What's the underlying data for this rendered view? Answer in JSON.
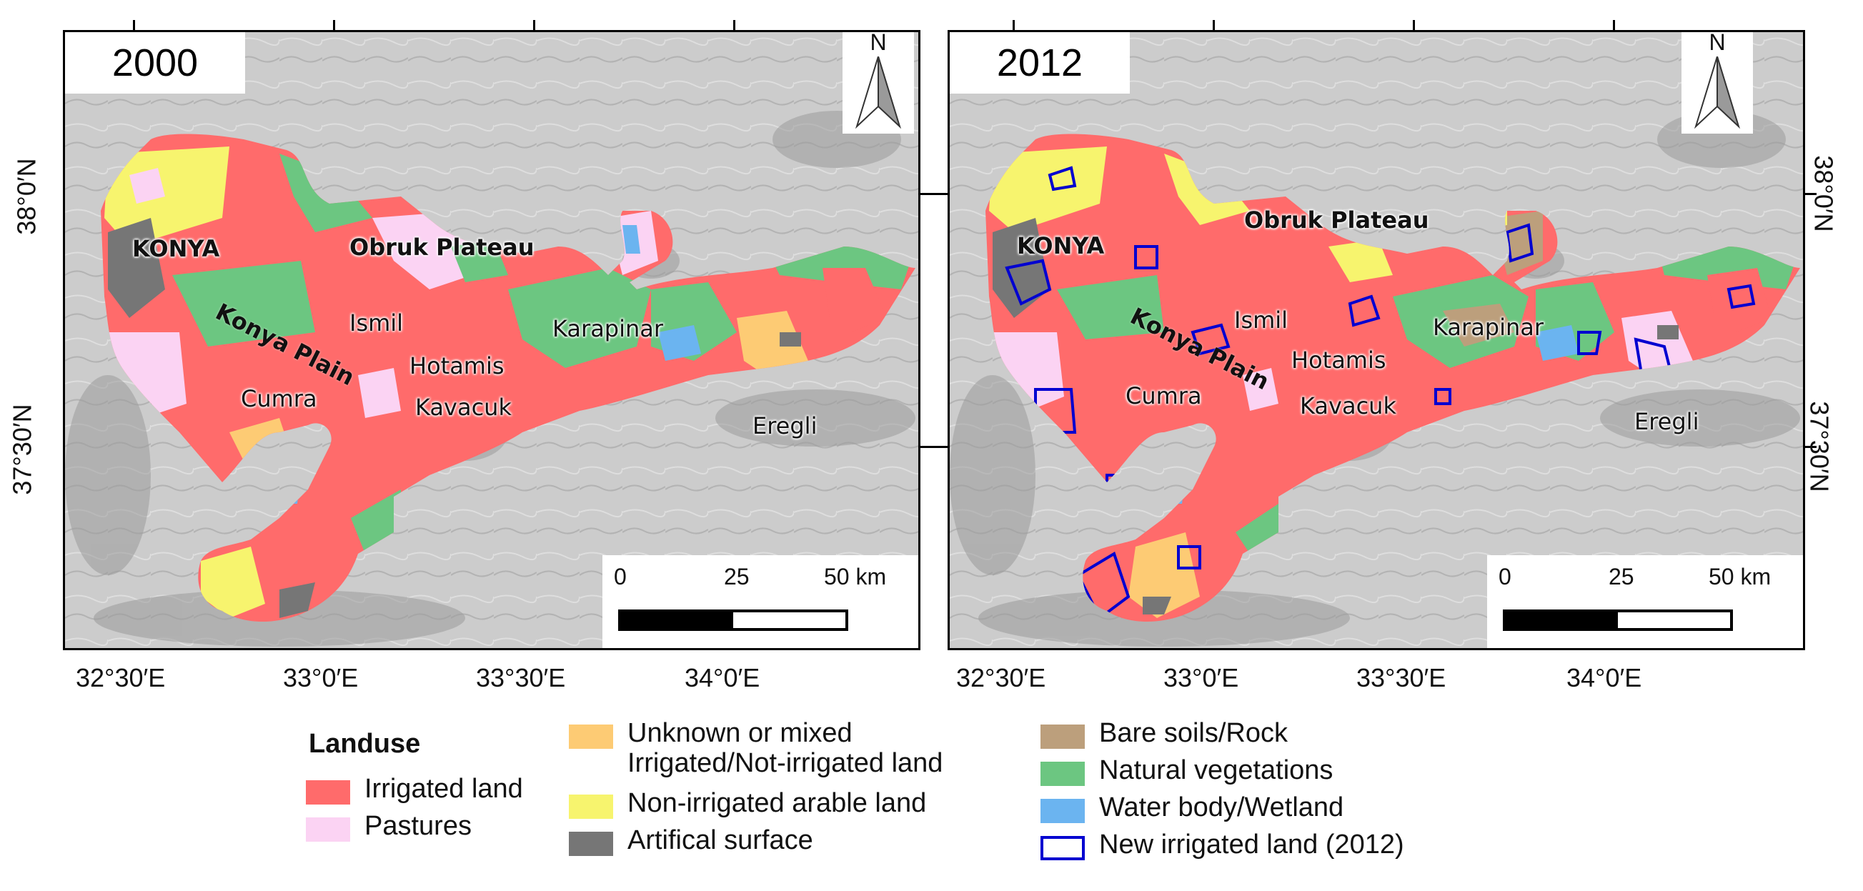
{
  "panels": [
    {
      "year": "2000",
      "places": {
        "konya": "KONYA",
        "obruk": "Obruk Plateau",
        "plain": "Konya Plain",
        "ismil": "Ismil",
        "karapinar": "Karapinar",
        "hotamis": "Hotamis",
        "cumra": "Cumra",
        "kavacuk": "Kavacuk",
        "eregli": "Eregli"
      },
      "north": "N",
      "scale": {
        "t0": "0",
        "t1": "25",
        "t2": "50 km"
      }
    },
    {
      "year": "2012",
      "places": {
        "konya": "KONYA",
        "obruk": "Obruk Plateau",
        "plain": "Konya Plain",
        "ismil": "Ismil",
        "karapinar": "Karapinar",
        "hotamis": "Hotamis",
        "cumra": "Cumra",
        "kavacuk": "Kavacuk",
        "eregli": "Eregli"
      },
      "north": "N",
      "scale": {
        "t0": "0",
        "t1": "25",
        "t2": "50 km"
      }
    }
  ],
  "axes": {
    "lon_left": [
      "32°30′E",
      "33°0′E",
      "33°30′E",
      "34°0′E"
    ],
    "lon_right": [
      "32°30′E",
      "33°0′E",
      "33°30′E",
      "34°0′E"
    ],
    "lat_left": [
      "38°0′N",
      "37°30′N"
    ],
    "lat_right": [
      "38°0′N",
      "37°30′N"
    ]
  },
  "legend": {
    "title": "Landuse",
    "items": [
      {
        "label": "Irrigated land",
        "color": "#ff6b6b"
      },
      {
        "label": "Pastures",
        "color": "#fbd3f3"
      },
      {
        "label": "Unknown or mixed",
        "label2": " Irrigated/Not-irrigated land",
        "color": "#fdcb74"
      },
      {
        "label": "Non-irrigated arable land",
        "color": "#f7f46e"
      },
      {
        "label": "Artifical surface",
        "color": "#767676"
      },
      {
        "label": "Bare soils/Rock",
        "color": "#bc9f7c"
      },
      {
        "label": "Natural vegetations",
        "color": "#6cc681"
      },
      {
        "label": "Water body/Wetland",
        "color": "#6bb4f0"
      },
      {
        "label": "New irrigated land (2012)",
        "color": "#0000d0"
      }
    ]
  },
  "colors": {
    "irrigated": "#ff6b6b",
    "pastures": "#fbd3f3",
    "mixed": "#fdcb74",
    "nonirrigated": "#f7f46e",
    "artificial": "#767676",
    "bare": "#bc9f7c",
    "vegetation": "#6cc681",
    "water": "#6bb4f0",
    "new_irrigated": "#0000d0",
    "hillshade": "#cfcfcf"
  }
}
